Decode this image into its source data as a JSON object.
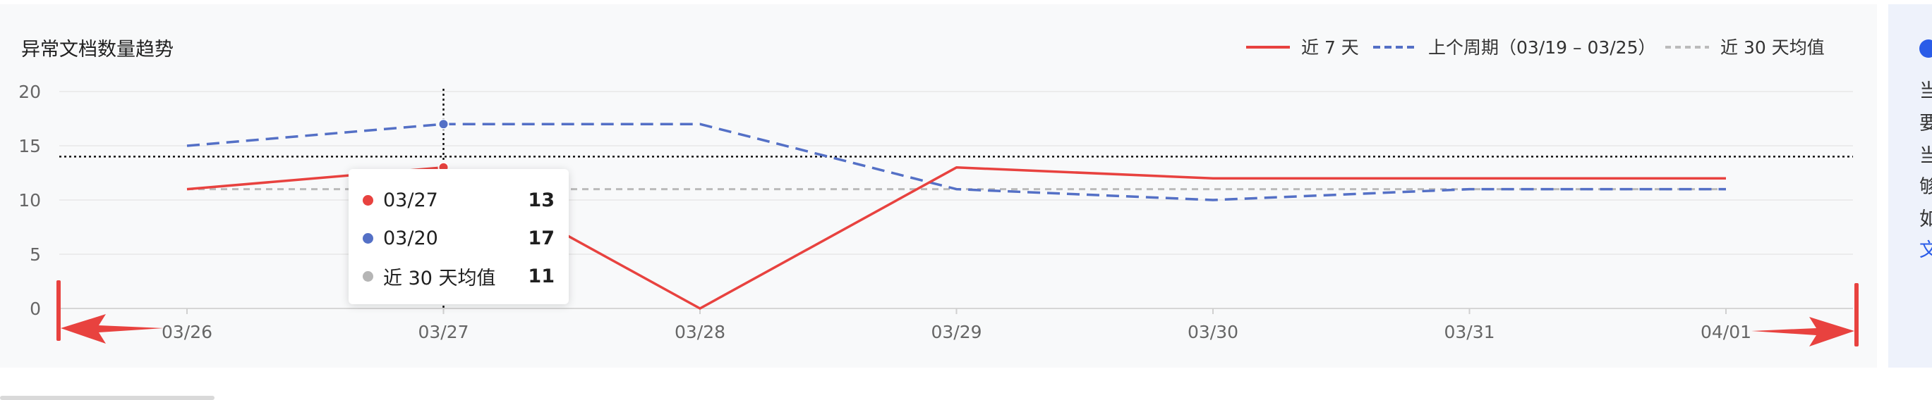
{
  "chart_data": {
    "type": "line",
    "title": "异常文档数量趋势",
    "categories": [
      "03/26",
      "03/27",
      "03/28",
      "03/29",
      "03/30",
      "03/31",
      "04/01"
    ],
    "ylim": [
      0,
      20
    ],
    "yticks": [
      0,
      5,
      10,
      15,
      20
    ],
    "grid": true,
    "legend_position": "top-right",
    "series": [
      {
        "name": "近 7 天",
        "color": "#e8423f",
        "style": "solid",
        "values": [
          11,
          13,
          0,
          13,
          12,
          12,
          12
        ]
      },
      {
        "name": "上个周期（03/19 – 03/25）",
        "color": "#5470c6",
        "style": "dashed",
        "values": [
          15,
          17,
          17,
          11,
          10,
          11,
          11
        ]
      },
      {
        "name": "近 30 天均值",
        "color": "#bbbbbb",
        "style": "dashed",
        "values": [
          11,
          11,
          11,
          11,
          11,
          11,
          11
        ]
      }
    ],
    "crosshair": {
      "category": "03/27",
      "y": 14
    }
  },
  "tooltip": {
    "rows": [
      {
        "label": "03/27",
        "value": "13",
        "color": "#e8423f"
      },
      {
        "label": "03/20",
        "value": "17",
        "color": "#5470c6"
      },
      {
        "label": "近 30 天均值",
        "value": "11",
        "color": "#b5b5b5"
      }
    ]
  },
  "side_panel": {
    "lines": [
      "当",
      "要",
      "当",
      "够",
      "如",
      "文"
    ],
    "accent_color": "#2a5ce8"
  }
}
